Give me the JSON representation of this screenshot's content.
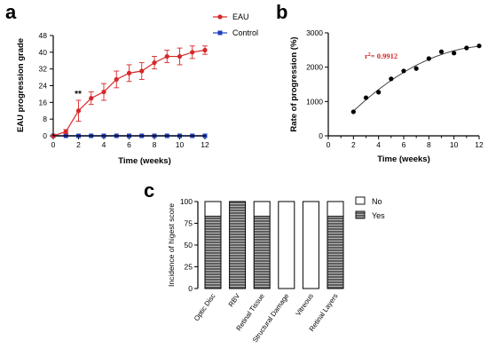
{
  "panels": {
    "a": "a",
    "b": "b",
    "c": "c"
  },
  "colors": {
    "eau": "#d62728",
    "control": "#1f3fbf",
    "yes_fill": "#6b6b6b"
  },
  "chart_data": [
    {
      "panel": "a",
      "type": "line",
      "xlabel": "Time (weeks)",
      "ylabel": "EAU progression grade",
      "xlim": [
        0,
        12
      ],
      "ylim": [
        0,
        48
      ],
      "xticks": [
        "0",
        "2",
        "4",
        "6",
        "8",
        "10",
        "12"
      ],
      "yticks": [
        "0",
        "8",
        "16",
        "24",
        "32",
        "40",
        "48"
      ],
      "x": [
        0,
        1,
        2,
        3,
        4,
        5,
        6,
        7,
        8,
        9,
        10,
        11,
        12
      ],
      "series": [
        {
          "name": "EAU",
          "color": "#d62728",
          "marker": "circle",
          "values": [
            0,
            2,
            12,
            18,
            21,
            27,
            30,
            31,
            35,
            38,
            38,
            40,
            41
          ],
          "errors": [
            0,
            1,
            5,
            3,
            4,
            4,
            4,
            4,
            3,
            3,
            4,
            3,
            2
          ]
        },
        {
          "name": "Control",
          "color": "#1f3fbf",
          "marker": "square",
          "values": [
            0,
            0,
            0,
            0,
            0,
            0,
            0,
            0,
            0,
            0,
            0,
            0,
            0
          ]
        }
      ],
      "annotations": [
        {
          "text": "**",
          "x": 2
        }
      ],
      "legend": "top-right"
    },
    {
      "panel": "b",
      "type": "scatter",
      "xlabel": "Time (weeks)",
      "ylabel": "Rate of progression (%)",
      "xlim": [
        0,
        12
      ],
      "ylim": [
        0,
        3000
      ],
      "xticks": [
        "0",
        "2",
        "4",
        "6",
        "8",
        "10",
        "12"
      ],
      "yticks": [
        "0",
        "1000",
        "2000",
        "3000"
      ],
      "x": [
        2,
        3,
        4,
        5,
        6,
        7,
        8,
        9,
        10,
        11,
        12
      ],
      "values": [
        700,
        1110,
        1270,
        1660,
        1890,
        1960,
        2250,
        2450,
        2410,
        2560,
        2620
      ],
      "fit": "curve",
      "annotation": {
        "prefix": "r",
        "sup": "2",
        "suffix": "= 0.9912",
        "color": "#d62728"
      }
    },
    {
      "panel": "c",
      "type": "bar",
      "stacked": true,
      "ylabel": "Incidence of higest score",
      "ylim": [
        0,
        100
      ],
      "yticks": [
        "0",
        "25",
        "50",
        "75",
        "100"
      ],
      "categories": [
        "Optic Disc",
        "RBV",
        "Retinal Tissue",
        "Structural Damage",
        "Vitreous",
        "Retinal Layers"
      ],
      "series": [
        {
          "name": "No",
          "values": [
            17,
            0,
            17,
            100,
            100,
            17
          ]
        },
        {
          "name": "Yes",
          "values": [
            83,
            100,
            83,
            0,
            0,
            83
          ]
        }
      ],
      "legend": "right"
    }
  ]
}
